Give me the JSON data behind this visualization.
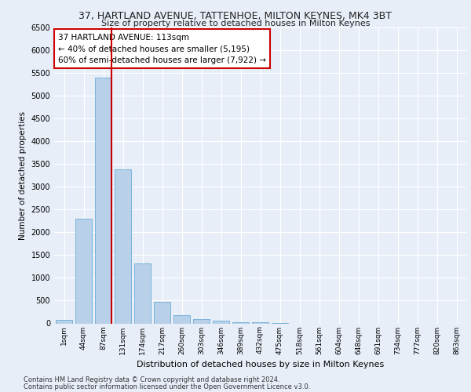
{
  "title1": "37, HARTLAND AVENUE, TATTENHOE, MILTON KEYNES, MK4 3BT",
  "title2": "Size of property relative to detached houses in Milton Keynes",
  "xlabel": "Distribution of detached houses by size in Milton Keynes",
  "ylabel": "Number of detached properties",
  "footnote1": "Contains HM Land Registry data © Crown copyright and database right 2024.",
  "footnote2": "Contains public sector information licensed under the Open Government Licence v3.0.",
  "bar_labels": [
    "1sqm",
    "44sqm",
    "87sqm",
    "131sqm",
    "174sqm",
    "217sqm",
    "260sqm",
    "303sqm",
    "346sqm",
    "389sqm",
    "432sqm",
    "475sqm",
    "518sqm",
    "561sqm",
    "604sqm",
    "648sqm",
    "691sqm",
    "734sqm",
    "777sqm",
    "820sqm",
    "863sqm"
  ],
  "bar_values": [
    70,
    2300,
    5400,
    3380,
    1320,
    480,
    185,
    90,
    55,
    30,
    20,
    10,
    0,
    0,
    0,
    0,
    0,
    0,
    0,
    0,
    0
  ],
  "bar_color": "#b8d0e8",
  "bar_edgecolor": "#6aaed6",
  "vline_color": "#cc0000",
  "ylim": [
    0,
    6500
  ],
  "yticks": [
    0,
    500,
    1000,
    1500,
    2000,
    2500,
    3000,
    3500,
    4000,
    4500,
    5000,
    5500,
    6000,
    6500
  ],
  "annotation_box_text": "37 HARTLAND AVENUE: 113sqm\n← 40% of detached houses are smaller (5,195)\n60% of semi-detached houses are larger (7,922) →",
  "annotation_box_color": "#cc0000",
  "bg_color": "#e8eef8",
  "plot_bg": "#e8eef8",
  "grid_color": "#ffffff",
  "vline_bar_index": 2
}
